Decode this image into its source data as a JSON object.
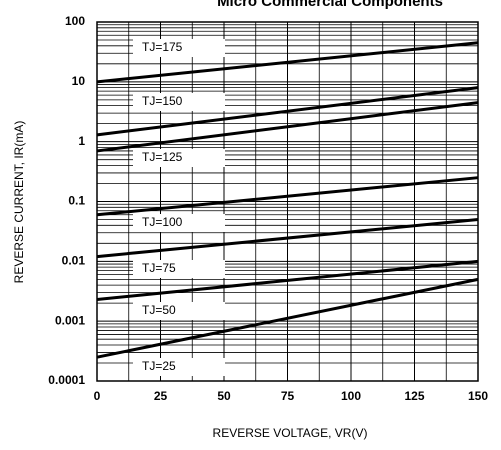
{
  "chart_data": {
    "type": "line",
    "title": "Micro Commercial Components",
    "x_label": "REVERSE VOLTAGE, VR(V)",
    "y_label": "REVERSE CURRENT, IR(mA)",
    "x": [
      0,
      150
    ],
    "series": [
      {
        "name": "TJ=175",
        "color": "#000000",
        "values": [
          10,
          45
        ]
      },
      {
        "name": "TJ=150",
        "color": "#000000",
        "values": [
          1.3,
          8
        ]
      },
      {
        "name": "TJ=125",
        "color": "#000000",
        "values": [
          0.7,
          4.5
        ]
      },
      {
        "name": "TJ=100",
        "color": "#000000",
        "values": [
          0.06,
          0.25
        ]
      },
      {
        "name": "TJ=75",
        "color": "#000000",
        "values": [
          0.012,
          0.05
        ]
      },
      {
        "name": "TJ=50",
        "color": "#000000",
        "values": [
          0.0023,
          0.01
        ]
      },
      {
        "name": "TJ=25",
        "color": "#000000",
        "values": [
          0.00025,
          0.005
        ]
      }
    ],
    "xlim": [
      0,
      150
    ],
    "xticks": [
      0,
      25,
      50,
      75,
      100,
      125,
      150
    ],
    "ylim": [
      0.0001,
      100
    ],
    "yticks": [
      0.0001,
      0.001,
      0.01,
      0.1,
      1,
      10,
      100
    ],
    "y_log": true,
    "grid": true
  }
}
